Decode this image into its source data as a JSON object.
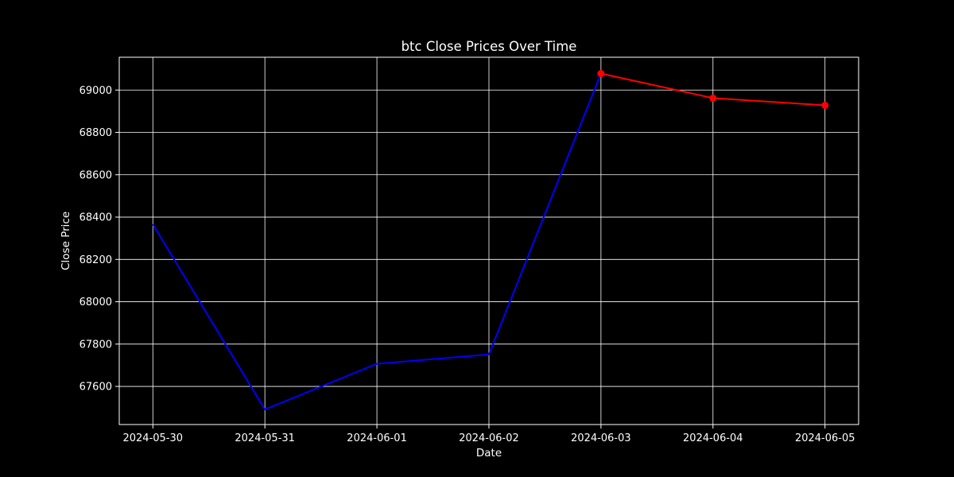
{
  "chart_data": {
    "type": "line",
    "title": "btc Close Prices Over Time",
    "xlabel": "Date",
    "ylabel": "Close Price",
    "x": [
      "2024-05-30",
      "2024-05-31",
      "2024-06-01",
      "2024-06-02",
      "2024-06-03",
      "2024-06-04",
      "2024-06-05"
    ],
    "series": [
      {
        "color": "#0000ff",
        "marker": "none",
        "x": [
          "2024-05-30",
          "2024-05-31",
          "2024-06-01",
          "2024-06-02",
          "2024-06-03"
        ],
        "values": [
          68366,
          67491,
          67707,
          67751,
          69078
        ]
      },
      {
        "color": "#ff0000",
        "marker": "circle",
        "x": [
          "2024-06-03",
          "2024-06-04",
          "2024-06-05"
        ],
        "values": [
          69078,
          68962,
          68928
        ]
      }
    ],
    "yticks": [
      67600,
      67800,
      68000,
      68200,
      68400,
      68600,
      68800,
      69000
    ],
    "ylim": [
      67420,
      69155
    ],
    "xlim": [
      "2024-05-29.7",
      "2024-06-05.3"
    ],
    "grid": true,
    "background_color": "#000000",
    "axes_color": "#ffffff",
    "grid_color": "#ffffff"
  }
}
